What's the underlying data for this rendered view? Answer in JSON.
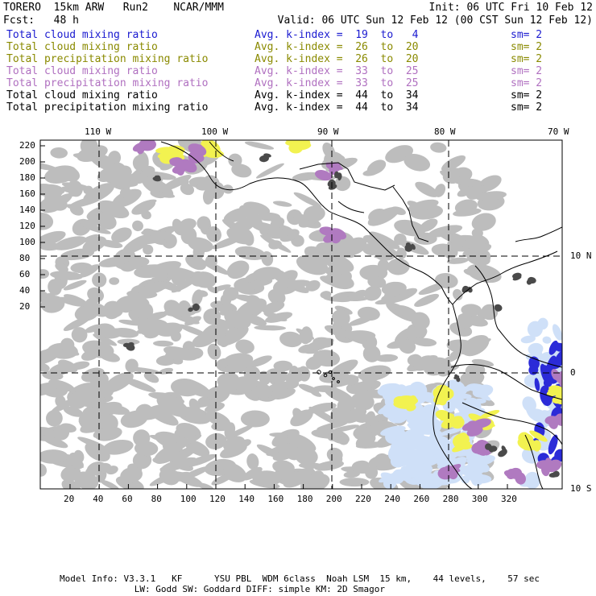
{
  "header": {
    "model": "TORERO  15km ARW   Run2    NCAR/MMM",
    "init": "Init: 06 UTC Fri 10 Feb 12",
    "fcst": "Fcst:   48 h",
    "valid": "Valid: 06 UTC Sun 12 Feb 12 (00 CST Sun 12 Feb 12)"
  },
  "legend": [
    {
      "field": "Total cloud mixing ratio",
      "kindex": "Avg. k-index =  19  to   4",
      "sm": "sm= 2",
      "color": "#1a1ad0"
    },
    {
      "field": "Total cloud mixing ratio",
      "kindex": "Avg. k-index =  26  to  20",
      "sm": "sm= 2",
      "color": "#8a8a00"
    },
    {
      "field": "Total precipitation mixing ratio",
      "kindex": "Avg. k-index =  26  to  20",
      "sm": "sm= 2",
      "color": "#8a8a00"
    },
    {
      "field": "Total cloud mixing ratio",
      "kindex": "Avg. k-index =  33  to  25",
      "sm": "sm= 2",
      "color": "#b070c0"
    },
    {
      "field": "Total precipitation mixing ratio",
      "kindex": "Avg. k-index =  33  to  25",
      "sm": "sm= 2",
      "color": "#b070c0"
    },
    {
      "field": "Total cloud mixing ratio",
      "kindex": "Avg. k-index =  44  to  34",
      "sm": "sm= 2",
      "color": "#000000"
    },
    {
      "field": "Total precipitation mixing ratio",
      "kindex": "Avg. k-index =  44  to  34",
      "sm": "sm= 2",
      "color": "#000000"
    }
  ],
  "map": {
    "lon_labels": [
      "110 W",
      "100 W",
      "90 W",
      "80 W",
      "70 W"
    ],
    "lat_labels": [
      "10 N",
      "0",
      "10 S"
    ],
    "y_ticks": [
      "220",
      "200",
      "180",
      "160",
      "140",
      "120",
      "100",
      "80",
      "60",
      "40",
      "20"
    ],
    "x_ticks": [
      "20",
      "40",
      "60",
      "80",
      "100",
      "120",
      "140",
      "160",
      "180",
      "200",
      "220",
      "240",
      "260",
      "280",
      "300",
      "320"
    ],
    "colors": {
      "cloud_gray": "#bdbdbd",
      "dark_gray": "#4a4a4a",
      "purple": "#b07ac0",
      "yellow": "#f2f250",
      "light_blue": "#cfe0f8",
      "blue": "#2b2bd8",
      "land_line": "#000000"
    }
  },
  "footer": {
    "line1": "Model Info: V3.3.1   KF      YSU PBL  WDM 6class  Noah LSM  15 km,    44 levels,    57 sec",
    "line2": "              LW: Godd SW: Goddard DIFF: simple KM: 2D Smagor"
  }
}
